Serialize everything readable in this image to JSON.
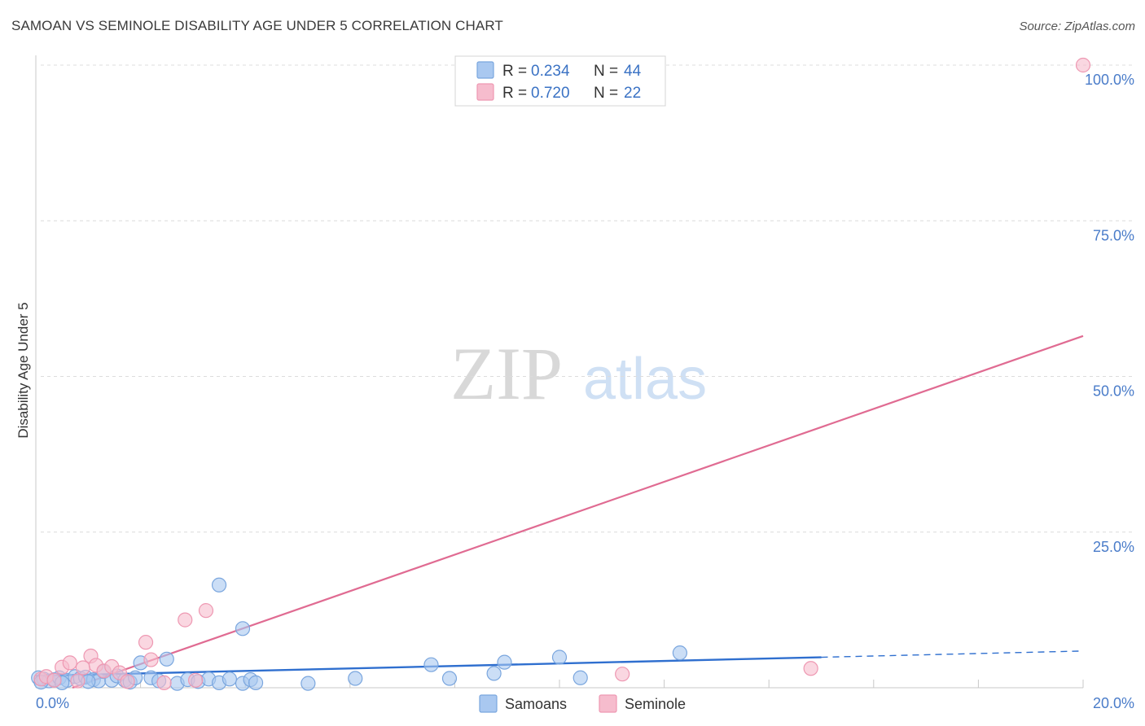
{
  "header": {
    "title": "SAMOAN VS SEMINOLE DISABILITY AGE UNDER 5 CORRELATION CHART",
    "source": "Source: ZipAtlas.com"
  },
  "colors": {
    "samoans_fill": "#a9c8f0",
    "samoans_stroke": "#7aa6de",
    "samoans_line": "#2f6fcf",
    "seminole_fill": "#f6bccd",
    "seminole_stroke": "#ee98b2",
    "seminole_line": "#e06b92",
    "tick_text": "#4a7cc9",
    "grid": "#dcdcdc"
  },
  "watermark": {
    "zip": "ZIP",
    "atlas": "atlas"
  },
  "legend": {
    "rows": [
      {
        "r_label": "R = ",
        "r_value": "0.234",
        "n_label": "N = ",
        "n_value": "44"
      },
      {
        "r_label": "R = ",
        "r_value": "0.720",
        "n_label": "N = ",
        "n_value": "22"
      }
    ]
  },
  "bottom_legend": [
    "Samoans",
    "Seminole"
  ],
  "chart_data": {
    "type": "scatter",
    "title": "SAMOAN VS SEMINOLE DISABILITY AGE UNDER 5 CORRELATION CHART",
    "xlabel": "",
    "ylabel": "Disability Age Under 5",
    "xlim": [
      0,
      20
    ],
    "ylim": [
      0,
      100
    ],
    "x_tick_labels": [
      "0.0%",
      "20.0%"
    ],
    "y_ticks": [
      25,
      50,
      75,
      100
    ],
    "y_tick_labels": [
      "25.0%",
      "50.0%",
      "75.0%",
      "100.0%"
    ],
    "grid": true,
    "legend_position": "top-center",
    "series": [
      {
        "name": "Samoans",
        "r": 0.234,
        "n": 44,
        "points": [
          [
            0.05,
            1.6
          ],
          [
            0.15,
            1.4
          ],
          [
            0.25,
            1.1
          ],
          [
            0.35,
            1.3
          ],
          [
            0.45,
            1.6
          ],
          [
            0.6,
            1.2
          ],
          [
            0.75,
            1.8
          ],
          [
            0.85,
            1.5
          ],
          [
            0.95,
            1.7
          ],
          [
            1.1,
            1.3
          ],
          [
            1.2,
            1.1
          ],
          [
            1.3,
            2.6
          ],
          [
            1.45,
            1.2
          ],
          [
            1.55,
            1.9
          ],
          [
            1.7,
            1.2
          ],
          [
            1.8,
            0.9
          ],
          [
            1.9,
            1.6
          ],
          [
            2.0,
            4.0
          ],
          [
            2.2,
            1.6
          ],
          [
            2.35,
            1.1
          ],
          [
            2.5,
            4.6
          ],
          [
            2.7,
            0.7
          ],
          [
            2.9,
            1.3
          ],
          [
            3.1,
            1.0
          ],
          [
            3.3,
            1.4
          ],
          [
            3.5,
            0.8
          ],
          [
            3.7,
            1.4
          ],
          [
            3.95,
            0.7
          ],
          [
            4.1,
            1.3
          ],
          [
            4.2,
            0.8
          ],
          [
            3.5,
            16.5
          ],
          [
            3.95,
            9.5
          ],
          [
            5.2,
            0.7
          ],
          [
            6.1,
            1.5
          ],
          [
            7.55,
            3.7
          ],
          [
            7.9,
            1.5
          ],
          [
            8.75,
            2.3
          ],
          [
            8.95,
            4.1
          ],
          [
            10.0,
            4.9
          ],
          [
            10.4,
            1.6
          ],
          [
            12.3,
            5.6
          ],
          [
            0.1,
            0.9
          ],
          [
            0.5,
            0.8
          ],
          [
            1.0,
            1.0
          ]
        ],
        "trend": {
          "x": [
            0,
            15
          ],
          "y": [
            1.9,
            4.9
          ]
        },
        "trend_dashed": {
          "x": [
            15,
            20
          ],
          "y": [
            4.9,
            5.9
          ]
        }
      },
      {
        "name": "Seminole",
        "r": 0.72,
        "n": 22,
        "points": [
          [
            0.1,
            1.4
          ],
          [
            0.2,
            1.8
          ],
          [
            0.35,
            1.2
          ],
          [
            0.5,
            3.3
          ],
          [
            0.65,
            4.0
          ],
          [
            0.8,
            1.1
          ],
          [
            0.9,
            3.2
          ],
          [
            1.05,
            5.1
          ],
          [
            1.15,
            3.6
          ],
          [
            1.3,
            2.7
          ],
          [
            1.45,
            3.4
          ],
          [
            1.6,
            2.4
          ],
          [
            1.75,
            1.0
          ],
          [
            2.1,
            7.3
          ],
          [
            2.2,
            4.5
          ],
          [
            2.45,
            0.8
          ],
          [
            2.85,
            10.9
          ],
          [
            3.05,
            1.2
          ],
          [
            3.25,
            12.4
          ],
          [
            11.2,
            2.2
          ],
          [
            14.8,
            3.1
          ],
          [
            20.0,
            100.0
          ]
        ],
        "trend": {
          "x": [
            0.7,
            20
          ],
          "y": [
            0,
            56.5
          ]
        }
      }
    ]
  }
}
